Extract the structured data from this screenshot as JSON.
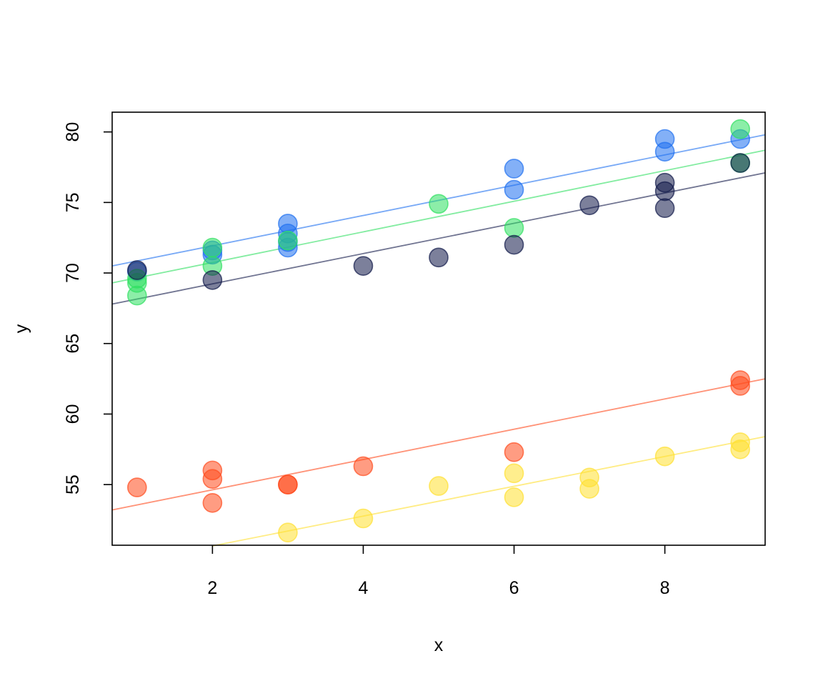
{
  "chart_data": {
    "type": "scatter",
    "title": "",
    "xlabel": "x",
    "ylabel": "y",
    "xlim": [
      0.67,
      9.33
    ],
    "ylim": [
      50.7,
      81.4
    ],
    "xticks": [
      "2",
      "4",
      "6",
      "8"
    ],
    "yticks": [
      "55",
      "60",
      "65",
      "70",
      "75",
      "80"
    ],
    "grid": false,
    "legend": "none",
    "series": [
      {
        "color": "#1E6FF0",
        "points": [
          [
            1,
            70.1
          ],
          [
            2,
            71.3
          ],
          [
            2,
            71.6
          ],
          [
            3,
            71.8
          ],
          [
            3,
            72.2
          ],
          [
            3,
            72.8
          ],
          [
            3,
            73.5
          ],
          [
            6,
            75.9
          ],
          [
            6,
            77.4
          ],
          [
            8,
            78.6
          ],
          [
            8,
            79.5
          ],
          [
            9,
            79.5
          ]
        ],
        "fit": [
          [
            0.67,
            70.5
          ],
          [
            9.33,
            79.8
          ]
        ]
      },
      {
        "color": "#2EE060",
        "points": [
          [
            1,
            68.4
          ],
          [
            1,
            69.3
          ],
          [
            1,
            69.6
          ],
          [
            2,
            70.5
          ],
          [
            2,
            71.8
          ],
          [
            3,
            72.3
          ],
          [
            5,
            74.9
          ],
          [
            6,
            73.2
          ],
          [
            9,
            77.8
          ],
          [
            9,
            80.2
          ]
        ],
        "fit": [
          [
            0.67,
            69.3
          ],
          [
            9.33,
            78.7
          ]
        ]
      },
      {
        "color": "#101848",
        "points": [
          [
            1,
            70.2
          ],
          [
            2,
            69.5
          ],
          [
            4,
            70.5
          ],
          [
            5,
            71.1
          ],
          [
            6,
            72.0
          ],
          [
            7,
            74.8
          ],
          [
            8,
            74.6
          ],
          [
            8,
            75.8
          ],
          [
            8,
            76.4
          ],
          [
            9,
            77.8
          ]
        ],
        "fit": [
          [
            0.67,
            67.8
          ],
          [
            9.33,
            77.1
          ]
        ]
      },
      {
        "color": "#FF4A1C",
        "points": [
          [
            1,
            54.8
          ],
          [
            2,
            53.7
          ],
          [
            2,
            55.4
          ],
          [
            2,
            56.0
          ],
          [
            3,
            55.0
          ],
          [
            3,
            55.0
          ],
          [
            4,
            56.3
          ],
          [
            6,
            57.3
          ],
          [
            9,
            62.0
          ],
          [
            9,
            62.4
          ]
        ],
        "fit": [
          [
            0.67,
            53.2
          ],
          [
            9.33,
            62.5
          ]
        ]
      },
      {
        "color": "#FFE030",
        "points": [
          [
            3,
            51.6
          ],
          [
            4,
            52.6
          ],
          [
            5,
            54.9
          ],
          [
            6,
            54.1
          ],
          [
            6,
            55.8
          ],
          [
            7,
            54.7
          ],
          [
            7,
            55.5
          ],
          [
            8,
            57.0
          ],
          [
            9,
            57.5
          ],
          [
            9,
            58.0
          ]
        ],
        "fit": [
          [
            2.0,
            50.65
          ],
          [
            9.33,
            58.4
          ]
        ]
      }
    ]
  }
}
